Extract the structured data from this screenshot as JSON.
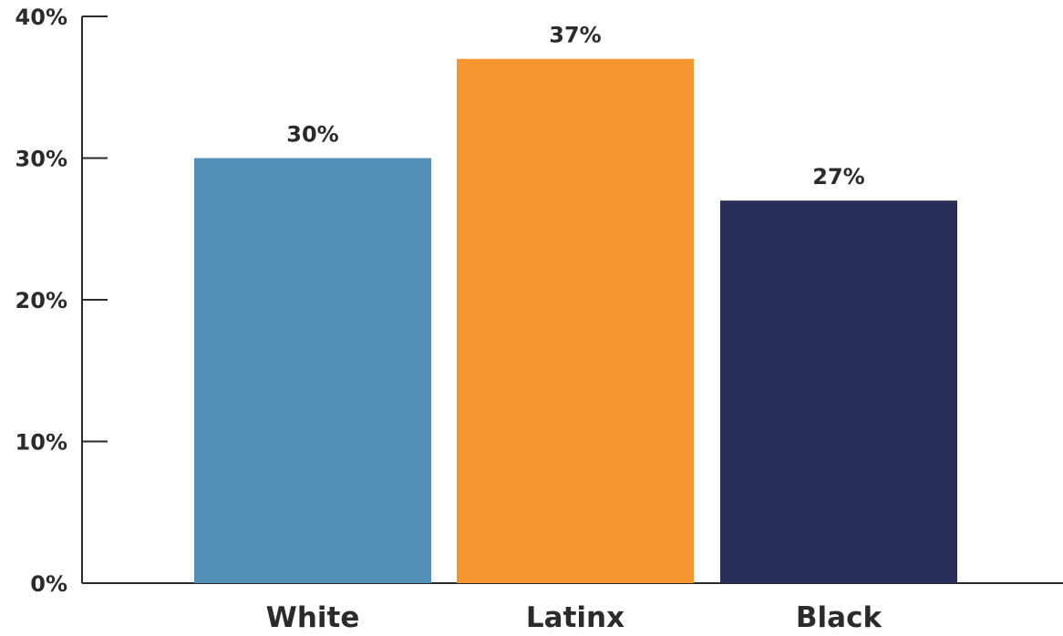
{
  "chart_data": {
    "type": "bar",
    "title": "",
    "xlabel": "",
    "ylabel": "",
    "categories": [
      "White",
      "Latinx",
      "Black"
    ],
    "values": [
      30,
      37,
      27
    ],
    "value_labels": [
      "30%",
      "37%",
      "27%"
    ],
    "colors": [
      "#528EB6",
      "#F5952F",
      "#28305A"
    ],
    "ylim": [
      0,
      40
    ],
    "yticks": [
      0,
      10,
      20,
      30,
      40
    ],
    "ytick_labels": [
      "0%",
      "10%",
      "20%",
      "30%",
      "40%"
    ],
    "grid": false,
    "legend": "none",
    "axis_color": "#2b2b2b"
  }
}
